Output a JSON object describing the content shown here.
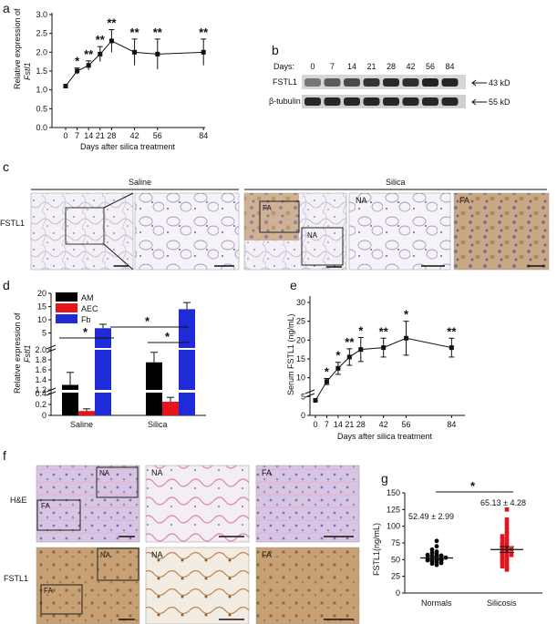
{
  "panels": {
    "a": "a",
    "b": "b",
    "c": "c",
    "d": "d",
    "e": "e",
    "f": "f",
    "g": "g"
  },
  "colors": {
    "AM": "#000000",
    "AEC": "#e8141b",
    "Fb": "#1f2bd6",
    "normals": "#000000",
    "silicosis": "#e0151f",
    "he_tissue": "#c9b8dc",
    "ihc_tissue": "#c9a16a"
  },
  "panel_a": {
    "ylabel_prefix": "Relative expression of",
    "ylabel_gene": "Fstl1",
    "xlabel": "Days after silica treatment"
  },
  "panel_b": {
    "days_label": "Days:",
    "days": [
      "0",
      "7",
      "14",
      "21",
      "28",
      "42",
      "56",
      "84"
    ],
    "row1_label": "FSTL1",
    "row2_label": "β-tubulin",
    "row1_size": "43 kD",
    "row2_size": "55 kD",
    "row1_intensity": [
      0.45,
      0.6,
      0.7,
      0.82,
      0.88,
      0.85,
      0.92,
      0.9
    ],
    "row2_intensity": [
      0.85,
      0.85,
      0.85,
      0.85,
      0.85,
      0.85,
      0.85,
      0.85
    ]
  },
  "panel_c": {
    "saline_header": "Saline",
    "silica_header": "Silica",
    "row_label": "FSTL1",
    "na": "NA",
    "fa": "FA"
  },
  "panel_d": {
    "legend": [
      "AM",
      "AEC",
      "Fb"
    ],
    "ylabel_prefix": "Relative expression of",
    "ylabel_gene": "Fstl1",
    "groups": [
      "Saline",
      "Silica"
    ],
    "star": "*"
  },
  "panel_e": {
    "ylabel": "Serum FSTL1 (ng/mL)",
    "xlabel": "Days after silica treatment"
  },
  "panel_f": {
    "row1_label": "H&E",
    "row2_label": "FSTL1",
    "na": "NA",
    "fa": "FA"
  },
  "panel_g": {
    "ylabel": "FSTL1(ng/mL)",
    "star": "*",
    "normals_label": "Normals",
    "silicosis_label": "Silicosis",
    "normals_value": "52.49 ± 2.99",
    "silicosis_value": "65.13 ± 4.28"
  },
  "chart_data": [
    {
      "panel": "a",
      "type": "line",
      "ylabel": "Relative expression of Fstl1",
      "xlabel": "Days after silica treatment",
      "x": [
        0,
        7,
        14,
        21,
        28,
        42,
        56,
        84
      ],
      "y": [
        1.1,
        1.5,
        1.65,
        1.95,
        2.3,
        2.0,
        1.95,
        2.0
      ],
      "err": [
        0.0,
        0.08,
        0.12,
        0.2,
        0.3,
        0.35,
        0.4,
        0.35
      ],
      "significance": [
        "",
        "*",
        "**",
        "**",
        "**",
        "**",
        "**",
        "**"
      ],
      "xticks": [
        0,
        7,
        14,
        21,
        28,
        42,
        56,
        84
      ],
      "yticks": [
        0,
        0.5,
        1.0,
        1.5,
        2.0,
        2.5,
        3.0
      ],
      "ylim": [
        0,
        3.0
      ]
    },
    {
      "panel": "d",
      "type": "bar",
      "ylabel": "Relative expression of Fstl1",
      "categories": [
        "Saline",
        "Silica"
      ],
      "series": [
        {
          "name": "AM",
          "values": [
            1.3,
            1.75
          ],
          "err": [
            0.25,
            0.2
          ]
        },
        {
          "name": "AEC",
          "values": [
            0.08,
            0.25
          ],
          "err": [
            0.04,
            0.08
          ]
        },
        {
          "name": "Fb",
          "values": [
            6.8,
            14.0
          ],
          "err": [
            1.5,
            2.5
          ]
        }
      ],
      "yticks_lower": [
        0,
        0.2,
        0.4
      ],
      "yticks_middle": [
        1.2,
        1.4,
        1.6,
        1.8,
        2.0
      ],
      "yticks_upper": [
        5,
        10,
        15,
        20
      ],
      "significance": "*"
    },
    {
      "panel": "e",
      "type": "line",
      "ylabel": "Serum FSTL1 (ng/mL)",
      "xlabel": "Days after silica treatment",
      "x": [
        0,
        7,
        14,
        21,
        28,
        42,
        56,
        84
      ],
      "y": [
        4.0,
        9.0,
        12.5,
        15.5,
        17.5,
        18.0,
        20.5,
        18.0
      ],
      "err": [
        0.0,
        0.8,
        1.6,
        2.2,
        3.2,
        2.5,
        4.5,
        2.5
      ],
      "significance": [
        "",
        "*",
        "*",
        "**",
        "*",
        "**",
        "*",
        "**"
      ],
      "xticks": [
        0,
        7,
        14,
        21,
        28,
        42,
        56,
        84
      ],
      "yticks": [
        0,
        5,
        10,
        15,
        20,
        25,
        30
      ],
      "ylim": [
        0,
        30
      ]
    },
    {
      "panel": "g",
      "type": "scatter",
      "ylabel": "FSTL1(ng/mL)",
      "categories": [
        "Normals",
        "Silicosis"
      ],
      "series": [
        {
          "name": "Normals",
          "mean": 52.49,
          "sem": 2.99,
          "values": [
            42,
            44,
            45,
            46,
            47,
            48,
            49,
            50,
            50,
            51,
            52,
            53,
            54,
            55,
            56,
            57,
            58,
            60,
            62,
            65,
            70,
            78
          ]
        },
        {
          "name": "Silicosis",
          "mean": 65.13,
          "sem": 4.28,
          "values": [
            35,
            38,
            40,
            42,
            45,
            47,
            48,
            50,
            52,
            54,
            55,
            57,
            58,
            60,
            62,
            63,
            65,
            66,
            68,
            70,
            72,
            74,
            75,
            78,
            80,
            82,
            85,
            88,
            90,
            95,
            100,
            105,
            110,
            125
          ]
        }
      ],
      "yticks": [
        0,
        25,
        50,
        75,
        100,
        125,
        150
      ],
      "ylim": [
        0,
        150
      ],
      "significance": "*"
    }
  ]
}
